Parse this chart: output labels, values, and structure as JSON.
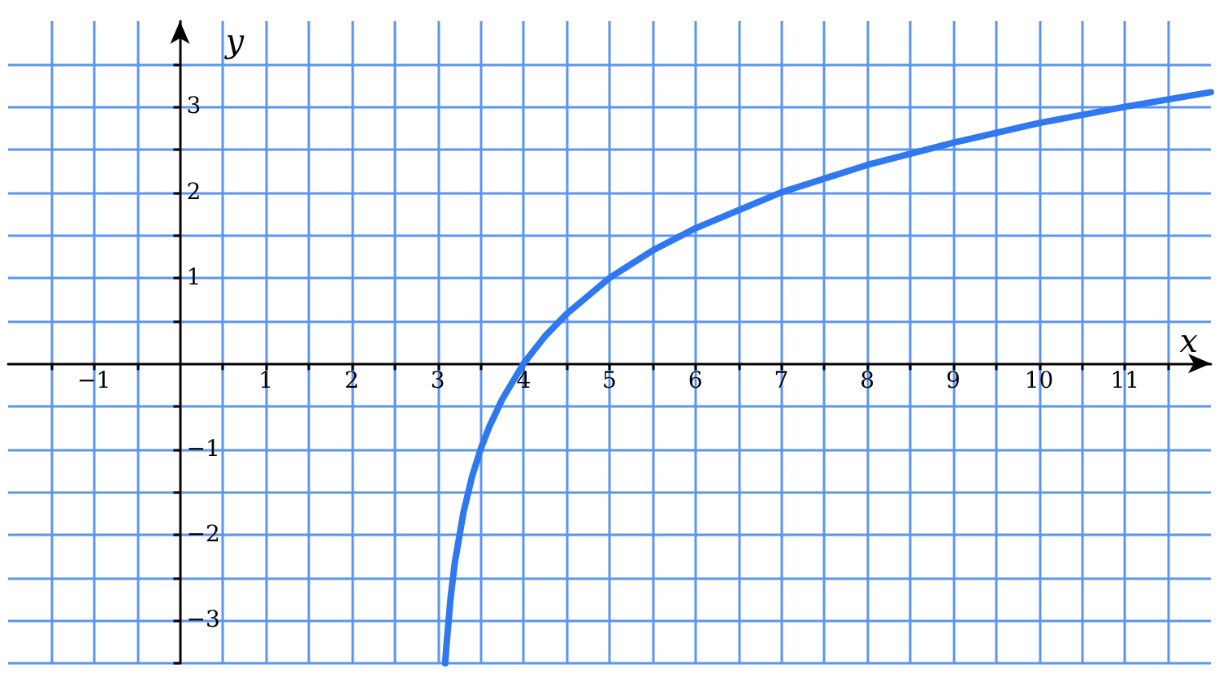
{
  "chart_data": {
    "type": "line",
    "xlabel": "x",
    "ylabel": "y",
    "xlim": [
      -2,
      12
    ],
    "ylim": [
      -3.5,
      4
    ],
    "xticks": [
      {
        "value": -1.5,
        "label": null
      },
      {
        "value": -1,
        "label": "−1"
      },
      {
        "value": -0.5,
        "label": null
      },
      {
        "value": 0.5,
        "label": null
      },
      1,
      {
        "value": 1.5,
        "label": null
      },
      2,
      {
        "value": 2.5,
        "label": null
      },
      3,
      {
        "value": 3.5,
        "label": null
      },
      4,
      {
        "value": 4.5,
        "label": null
      },
      5,
      {
        "value": 5.5,
        "label": null
      },
      6,
      {
        "value": 6.5,
        "label": null
      },
      7,
      {
        "value": 7.5,
        "label": null
      },
      8,
      {
        "value": 8.5,
        "label": null
      },
      9,
      {
        "value": 9.5,
        "label": null
      },
      10,
      {
        "value": 10.5,
        "label": null
      },
      11,
      {
        "value": 11.5,
        "label": null
      }
    ],
    "yticks": [
      {
        "value": -3.5,
        "label": null
      },
      {
        "value": -3,
        "label": "−3"
      },
      {
        "value": -2.5,
        "label": null
      },
      {
        "value": -2,
        "label": "−2"
      },
      {
        "value": -1.5,
        "label": null
      },
      {
        "value": -1,
        "label": "−1"
      },
      {
        "value": -0.5,
        "label": null
      },
      {
        "value": 0.5,
        "label": null
      },
      1,
      {
        "value": 1.5,
        "label": null
      },
      2,
      {
        "value": 2.5,
        "label": null
      },
      3,
      {
        "value": 3.5,
        "label": null
      }
    ],
    "grid": true,
    "marker": "none",
    "line_style": "solid",
    "series": [
      {
        "color": "#2f78f0",
        "x": [
          3.088,
          3.1,
          3.15,
          3.2,
          3.3,
          3.4,
          3.5,
          3.6,
          3.75,
          4,
          4.25,
          4.5,
          5,
          5.5,
          6,
          7,
          8,
          9,
          10,
          11,
          12
        ],
        "values": [
          -3.5,
          -3.32,
          -2.74,
          -2.32,
          -1.74,
          -1.32,
          -1,
          -0.74,
          -0.42,
          0,
          0.32,
          0.58,
          1,
          1.32,
          1.58,
          2,
          2.32,
          2.58,
          2.81,
          3,
          3.17
        ]
      }
    ]
  }
}
